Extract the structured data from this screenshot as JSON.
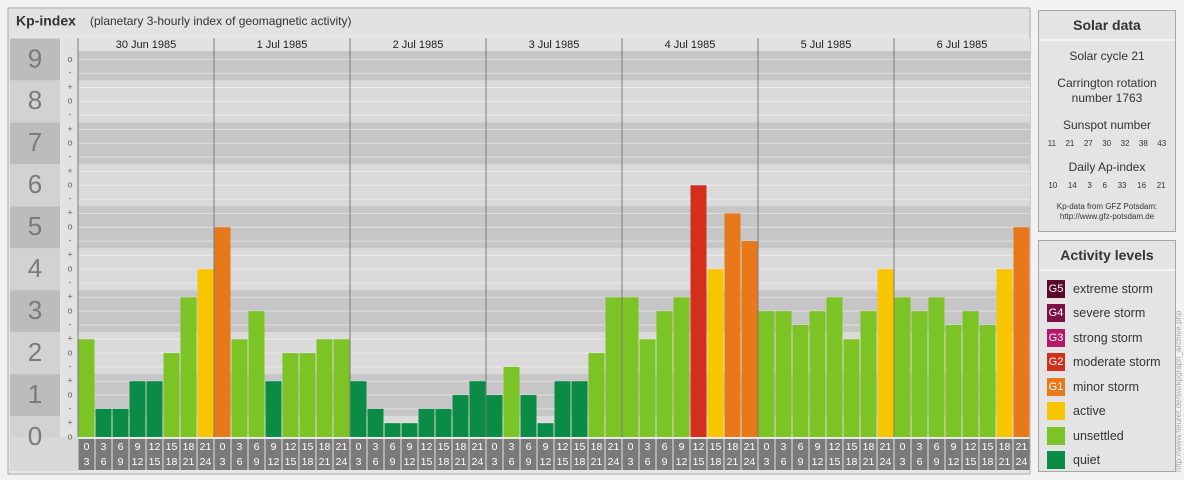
{
  "header": {
    "title": "Kp-index",
    "subtitle": "(planetary 3-hourly index of geomagnetic activity)"
  },
  "chart_data": {
    "type": "bar",
    "ylim": [
      0,
      9.2
    ],
    "yticks": [
      0,
      1,
      2,
      3,
      4,
      5,
      6,
      7,
      8,
      9
    ],
    "minor_ticks": [
      {
        "value": 0,
        "label": "o"
      },
      {
        "value": 0.33,
        "label": "+"
      },
      {
        "value": 0.67,
        "label": "-"
      },
      {
        "value": 1,
        "label": "o"
      },
      {
        "value": 1.33,
        "label": "+"
      },
      {
        "value": 1.67,
        "label": "-"
      },
      {
        "value": 2,
        "label": "o"
      },
      {
        "value": 2.33,
        "label": "+"
      },
      {
        "value": 2.67,
        "label": "-"
      },
      {
        "value": 3,
        "label": "o"
      },
      {
        "value": 3.33,
        "label": "+"
      },
      {
        "value": 3.67,
        "label": "-"
      },
      {
        "value": 4,
        "label": "o"
      },
      {
        "value": 4.33,
        "label": "+"
      },
      {
        "value": 4.67,
        "label": "-"
      },
      {
        "value": 5,
        "label": "o"
      },
      {
        "value": 5.33,
        "label": "+"
      },
      {
        "value": 5.67,
        "label": "-"
      },
      {
        "value": 6,
        "label": "o"
      },
      {
        "value": 6.33,
        "label": "+"
      },
      {
        "value": 6.67,
        "label": "-"
      },
      {
        "value": 7,
        "label": "o"
      },
      {
        "value": 7.33,
        "label": "+"
      },
      {
        "value": 7.67,
        "label": "-"
      },
      {
        "value": 8,
        "label": "o"
      },
      {
        "value": 8.33,
        "label": "+"
      },
      {
        "value": 8.67,
        "label": "-"
      },
      {
        "value": 9,
        "label": "o"
      }
    ],
    "interval_starts": [
      0,
      3,
      6,
      9,
      12,
      15,
      18,
      21
    ],
    "interval_ends": [
      3,
      6,
      9,
      12,
      15,
      18,
      21,
      24
    ],
    "days": [
      {
        "label": "30 Jun 1985",
        "values": [
          2.33,
          0.67,
          0.67,
          1.33,
          1.33,
          2,
          3.33,
          4
        ],
        "colors": [
          "#7cc425",
          "#0a8c46",
          "#0a8c46",
          "#0a8c46",
          "#0a8c46",
          "#7cc425",
          "#7cc425",
          "#f7c600"
        ]
      },
      {
        "label": "1 Jul 1985",
        "values": [
          5,
          2.33,
          3,
          1.33,
          2,
          2,
          2.33,
          2.33
        ],
        "colors": [
          "#e8791a",
          "#7cc425",
          "#7cc425",
          "#0a8c46",
          "#7cc425",
          "#7cc425",
          "#7cc425",
          "#7cc425"
        ]
      },
      {
        "label": "2 Jul 1985",
        "values": [
          1.33,
          0.67,
          0.33,
          0.33,
          0.67,
          0.67,
          1,
          1.33
        ],
        "colors": [
          "#0a8c46",
          "#0a8c46",
          "#0a8c46",
          "#0a8c46",
          "#0a8c46",
          "#0a8c46",
          "#0a8c46",
          "#0a8c46"
        ]
      },
      {
        "label": "3 Jul 1985",
        "values": [
          1,
          1.67,
          1,
          0.33,
          1.33,
          1.33,
          2,
          3.33
        ],
        "colors": [
          "#0a8c46",
          "#7cc425",
          "#0a8c46",
          "#0a8c46",
          "#0a8c46",
          "#0a8c46",
          "#7cc425",
          "#7cc425"
        ]
      },
      {
        "label": "4 Jul 1985",
        "values": [
          3.33,
          2.33,
          3,
          3.33,
          6,
          4,
          5.33,
          4.67
        ],
        "colors": [
          "#7cc425",
          "#7cc425",
          "#7cc425",
          "#7cc425",
          "#d42e1c",
          "#f7c600",
          "#e8791a",
          "#e8791a"
        ]
      },
      {
        "label": "5 Jul 1985",
        "values": [
          3,
          3,
          2.67,
          3,
          3.33,
          2.33,
          3,
          4
        ],
        "colors": [
          "#7cc425",
          "#7cc425",
          "#7cc425",
          "#7cc425",
          "#7cc425",
          "#7cc425",
          "#7cc425",
          "#f7c600"
        ]
      },
      {
        "label": "6 Jul 1985",
        "values": [
          3.33,
          3,
          3.33,
          2.67,
          3,
          2.67,
          4,
          5
        ],
        "colors": [
          "#7cc425",
          "#7cc425",
          "#7cc425",
          "#7cc425",
          "#7cc425",
          "#7cc425",
          "#f7c600",
          "#e8791a"
        ]
      }
    ]
  },
  "solar_data": {
    "title": "Solar data",
    "cycle": "Solar cycle 21",
    "rotation": "Carrington rotation number 1763",
    "sunspot_title": "Sunspot number",
    "sunspot_numbers": [
      11,
      21,
      27,
      30,
      32,
      38,
      43
    ],
    "ap_title": "Daily Ap-index",
    "ap_index": [
      10,
      14,
      3,
      6,
      33,
      16,
      21
    ],
    "source": "Kp-data from GFZ Potsdam:",
    "source_url": "http://www.gfz-potsdam.de"
  },
  "activity_levels": {
    "title": "Activity levels",
    "items": [
      {
        "badge": "G5",
        "name": "extreme storm",
        "color": "#5a0a2a"
      },
      {
        "badge": "G4",
        "name": "severe storm",
        "color": "#7a1248"
      },
      {
        "badge": "G3",
        "name": "strong storm",
        "color": "#b8186a"
      },
      {
        "badge": "G2",
        "name": "moderate storm",
        "color": "#d42e1c"
      },
      {
        "badge": "G1",
        "name": "minor storm",
        "color": "#e8791a"
      },
      {
        "name": "active",
        "color": "#f7c600"
      },
      {
        "name": "unsettled",
        "color": "#7cc425"
      },
      {
        "name": "quiet",
        "color": "#0a8c46"
      }
    ]
  },
  "watermark": "http://www.fleuret.de/sw/kpgraph_archive.php"
}
